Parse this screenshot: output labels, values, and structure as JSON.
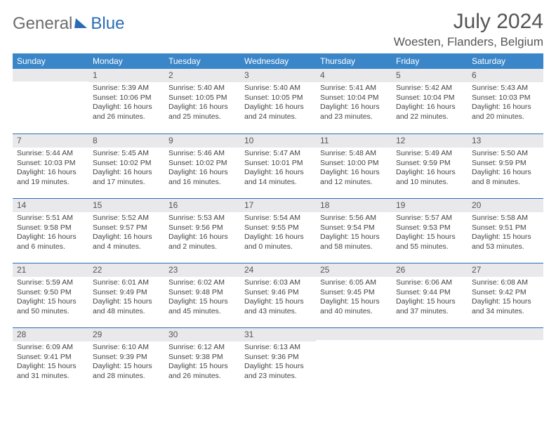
{
  "logo": {
    "first": "General",
    "second": "Blue"
  },
  "title": "July 2024",
  "location": "Woesten, Flanders, Belgium",
  "dayHeaders": [
    "Sunday",
    "Monday",
    "Tuesday",
    "Wednesday",
    "Thursday",
    "Friday",
    "Saturday"
  ],
  "colors": {
    "headerBg": "#3a86c8",
    "dayBarBg": "#e9e9ec",
    "rowDivider": "#2a6db5",
    "text": "#444"
  },
  "weeks": [
    [
      {
        "n": "",
        "l1": "",
        "l2": "",
        "l3": "",
        "l4": ""
      },
      {
        "n": "1",
        "l1": "Sunrise: 5:39 AM",
        "l2": "Sunset: 10:06 PM",
        "l3": "Daylight: 16 hours",
        "l4": "and 26 minutes."
      },
      {
        "n": "2",
        "l1": "Sunrise: 5:40 AM",
        "l2": "Sunset: 10:05 PM",
        "l3": "Daylight: 16 hours",
        "l4": "and 25 minutes."
      },
      {
        "n": "3",
        "l1": "Sunrise: 5:40 AM",
        "l2": "Sunset: 10:05 PM",
        "l3": "Daylight: 16 hours",
        "l4": "and 24 minutes."
      },
      {
        "n": "4",
        "l1": "Sunrise: 5:41 AM",
        "l2": "Sunset: 10:04 PM",
        "l3": "Daylight: 16 hours",
        "l4": "and 23 minutes."
      },
      {
        "n": "5",
        "l1": "Sunrise: 5:42 AM",
        "l2": "Sunset: 10:04 PM",
        "l3": "Daylight: 16 hours",
        "l4": "and 22 minutes."
      },
      {
        "n": "6",
        "l1": "Sunrise: 5:43 AM",
        "l2": "Sunset: 10:03 PM",
        "l3": "Daylight: 16 hours",
        "l4": "and 20 minutes."
      }
    ],
    [
      {
        "n": "7",
        "l1": "Sunrise: 5:44 AM",
        "l2": "Sunset: 10:03 PM",
        "l3": "Daylight: 16 hours",
        "l4": "and 19 minutes."
      },
      {
        "n": "8",
        "l1": "Sunrise: 5:45 AM",
        "l2": "Sunset: 10:02 PM",
        "l3": "Daylight: 16 hours",
        "l4": "and 17 minutes."
      },
      {
        "n": "9",
        "l1": "Sunrise: 5:46 AM",
        "l2": "Sunset: 10:02 PM",
        "l3": "Daylight: 16 hours",
        "l4": "and 16 minutes."
      },
      {
        "n": "10",
        "l1": "Sunrise: 5:47 AM",
        "l2": "Sunset: 10:01 PM",
        "l3": "Daylight: 16 hours",
        "l4": "and 14 minutes."
      },
      {
        "n": "11",
        "l1": "Sunrise: 5:48 AM",
        "l2": "Sunset: 10:00 PM",
        "l3": "Daylight: 16 hours",
        "l4": "and 12 minutes."
      },
      {
        "n": "12",
        "l1": "Sunrise: 5:49 AM",
        "l2": "Sunset: 9:59 PM",
        "l3": "Daylight: 16 hours",
        "l4": "and 10 minutes."
      },
      {
        "n": "13",
        "l1": "Sunrise: 5:50 AM",
        "l2": "Sunset: 9:59 PM",
        "l3": "Daylight: 16 hours",
        "l4": "and 8 minutes."
      }
    ],
    [
      {
        "n": "14",
        "l1": "Sunrise: 5:51 AM",
        "l2": "Sunset: 9:58 PM",
        "l3": "Daylight: 16 hours",
        "l4": "and 6 minutes."
      },
      {
        "n": "15",
        "l1": "Sunrise: 5:52 AM",
        "l2": "Sunset: 9:57 PM",
        "l3": "Daylight: 16 hours",
        "l4": "and 4 minutes."
      },
      {
        "n": "16",
        "l1": "Sunrise: 5:53 AM",
        "l2": "Sunset: 9:56 PM",
        "l3": "Daylight: 16 hours",
        "l4": "and 2 minutes."
      },
      {
        "n": "17",
        "l1": "Sunrise: 5:54 AM",
        "l2": "Sunset: 9:55 PM",
        "l3": "Daylight: 16 hours",
        "l4": "and 0 minutes."
      },
      {
        "n": "18",
        "l1": "Sunrise: 5:56 AM",
        "l2": "Sunset: 9:54 PM",
        "l3": "Daylight: 15 hours",
        "l4": "and 58 minutes."
      },
      {
        "n": "19",
        "l1": "Sunrise: 5:57 AM",
        "l2": "Sunset: 9:53 PM",
        "l3": "Daylight: 15 hours",
        "l4": "and 55 minutes."
      },
      {
        "n": "20",
        "l1": "Sunrise: 5:58 AM",
        "l2": "Sunset: 9:51 PM",
        "l3": "Daylight: 15 hours",
        "l4": "and 53 minutes."
      }
    ],
    [
      {
        "n": "21",
        "l1": "Sunrise: 5:59 AM",
        "l2": "Sunset: 9:50 PM",
        "l3": "Daylight: 15 hours",
        "l4": "and 50 minutes."
      },
      {
        "n": "22",
        "l1": "Sunrise: 6:01 AM",
        "l2": "Sunset: 9:49 PM",
        "l3": "Daylight: 15 hours",
        "l4": "and 48 minutes."
      },
      {
        "n": "23",
        "l1": "Sunrise: 6:02 AM",
        "l2": "Sunset: 9:48 PM",
        "l3": "Daylight: 15 hours",
        "l4": "and 45 minutes."
      },
      {
        "n": "24",
        "l1": "Sunrise: 6:03 AM",
        "l2": "Sunset: 9:46 PM",
        "l3": "Daylight: 15 hours",
        "l4": "and 43 minutes."
      },
      {
        "n": "25",
        "l1": "Sunrise: 6:05 AM",
        "l2": "Sunset: 9:45 PM",
        "l3": "Daylight: 15 hours",
        "l4": "and 40 minutes."
      },
      {
        "n": "26",
        "l1": "Sunrise: 6:06 AM",
        "l2": "Sunset: 9:44 PM",
        "l3": "Daylight: 15 hours",
        "l4": "and 37 minutes."
      },
      {
        "n": "27",
        "l1": "Sunrise: 6:08 AM",
        "l2": "Sunset: 9:42 PM",
        "l3": "Daylight: 15 hours",
        "l4": "and 34 minutes."
      }
    ],
    [
      {
        "n": "28",
        "l1": "Sunrise: 6:09 AM",
        "l2": "Sunset: 9:41 PM",
        "l3": "Daylight: 15 hours",
        "l4": "and 31 minutes."
      },
      {
        "n": "29",
        "l1": "Sunrise: 6:10 AM",
        "l2": "Sunset: 9:39 PM",
        "l3": "Daylight: 15 hours",
        "l4": "and 28 minutes."
      },
      {
        "n": "30",
        "l1": "Sunrise: 6:12 AM",
        "l2": "Sunset: 9:38 PM",
        "l3": "Daylight: 15 hours",
        "l4": "and 26 minutes."
      },
      {
        "n": "31",
        "l1": "Sunrise: 6:13 AM",
        "l2": "Sunset: 9:36 PM",
        "l3": "Daylight: 15 hours",
        "l4": "and 23 minutes."
      },
      {
        "n": "",
        "l1": "",
        "l2": "",
        "l3": "",
        "l4": ""
      },
      {
        "n": "",
        "l1": "",
        "l2": "",
        "l3": "",
        "l4": ""
      },
      {
        "n": "",
        "l1": "",
        "l2": "",
        "l3": "",
        "l4": ""
      }
    ]
  ]
}
